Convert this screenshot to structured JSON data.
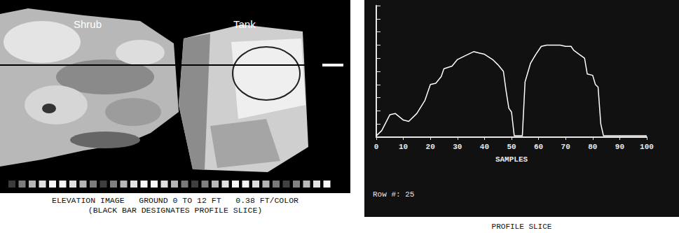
{
  "chart_data": {
    "type": "line",
    "title": "PROFILE SLICE",
    "x_label": "SAMPLES",
    "annotation": "Row #: 25",
    "x": [
      0,
      2,
      5,
      7,
      10,
      12,
      15,
      18,
      20,
      22,
      24,
      25,
      28,
      30,
      33,
      36,
      38,
      40,
      43,
      45,
      47,
      48,
      49,
      50,
      51,
      52,
      53,
      54,
      55,
      57,
      59,
      61,
      63,
      66,
      68,
      70,
      72,
      73,
      75,
      77,
      78,
      80,
      81,
      82,
      83,
      84,
      90,
      100
    ],
    "values": [
      0.1,
      0.5,
      1.7,
      1.8,
      1.3,
      1.2,
      1.8,
      2.8,
      4.0,
      4.1,
      4.6,
      5.2,
      5.4,
      5.9,
      6.2,
      6.5,
      6.4,
      6.3,
      5.9,
      5.5,
      5.0,
      3.5,
      2.2,
      1.9,
      0.1,
      0.1,
      0.1,
      0.1,
      4.2,
      5.6,
      6.3,
      6.9,
      7.0,
      7.0,
      7.0,
      6.9,
      6.9,
      6.6,
      6.3,
      6.0,
      4.8,
      4.7,
      4.0,
      3.8,
      1.0,
      0.1,
      0.1,
      0.1
    ],
    "color": "#ffffff",
    "xlim": [
      0,
      100
    ],
    "xticks": [
      0,
      10,
      20,
      30,
      40,
      50,
      60,
      70,
      80,
      90,
      100
    ],
    "ylim": [
      0,
      10
    ],
    "yticks": [
      0,
      1,
      2,
      3,
      4,
      5,
      6,
      7,
      8,
      9,
      10
    ],
    "tick_labels": "x",
    "grid": false
  },
  "elevation_image": {
    "labels": [
      "Shrub",
      "Tank"
    ],
    "caption": [
      "ELEVATION IMAGE   GROUND 0 TO 12 FT   0.38 FT/COLOR",
      "(BLACK BAR DESIGNATES PROFILE SLICE)"
    ]
  }
}
